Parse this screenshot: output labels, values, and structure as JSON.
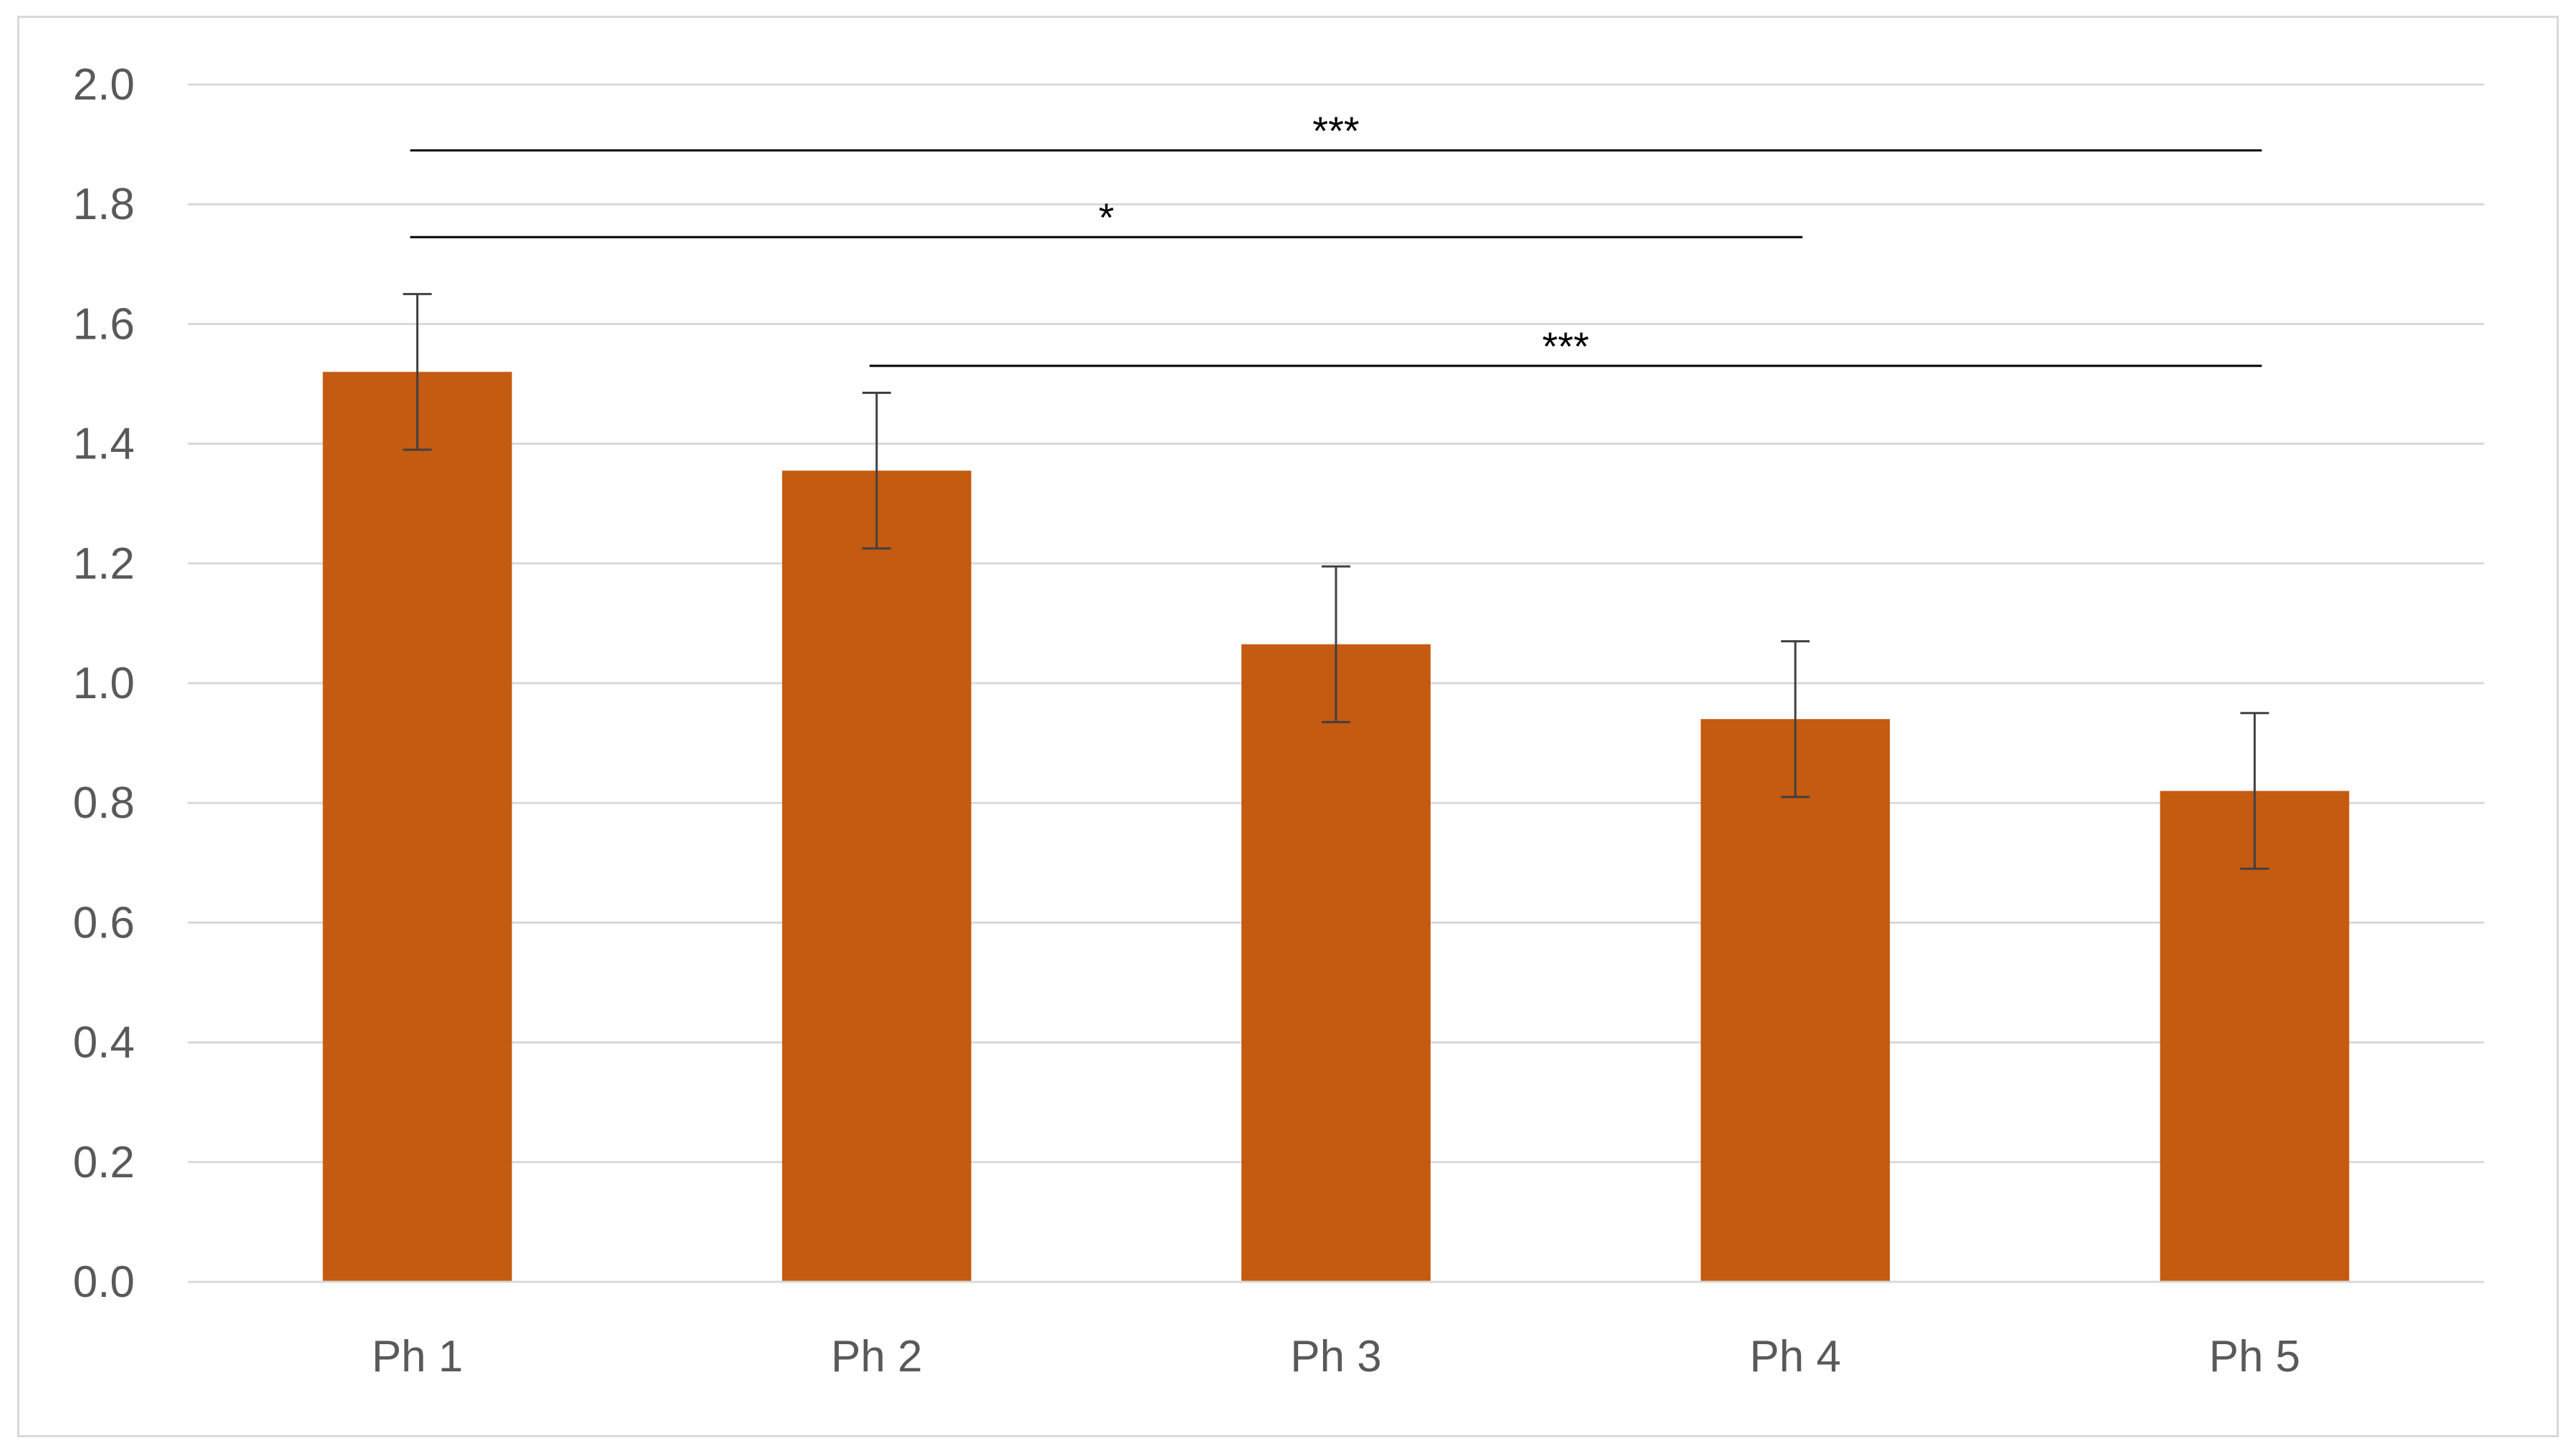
{
  "chart_data": {
    "type": "bar",
    "title": "",
    "xlabel": "",
    "ylabel": "",
    "categories": [
      "Ph 1",
      "Ph 2",
      "Ph 3",
      "Ph 4",
      "Ph 5"
    ],
    "values": [
      1.52,
      1.355,
      1.065,
      0.94,
      0.82
    ],
    "error": [
      0.13,
      0.13,
      0.13,
      0.13,
      0.13
    ],
    "ylim": [
      0,
      2.0
    ],
    "yticks": [
      0.0,
      0.2,
      0.4,
      0.6,
      0.8,
      1.0,
      1.2,
      1.4,
      1.6,
      1.8,
      2.0
    ],
    "ytick_labels": [
      "0.0",
      "0.2",
      "0.4",
      "0.6",
      "0.8",
      "1.0",
      "1.2",
      "1.4",
      "1.6",
      "1.8",
      "2.0"
    ],
    "grid": true,
    "legend": "none",
    "bar_color": "#c55a11",
    "significance": [
      {
        "from": 0,
        "to": 4,
        "label": "***",
        "y": 1.89
      },
      {
        "from": 0,
        "to": 3,
        "label": "*",
        "y": 1.745
      },
      {
        "from": 1,
        "to": 4,
        "label": "***",
        "y": 1.53
      }
    ]
  }
}
